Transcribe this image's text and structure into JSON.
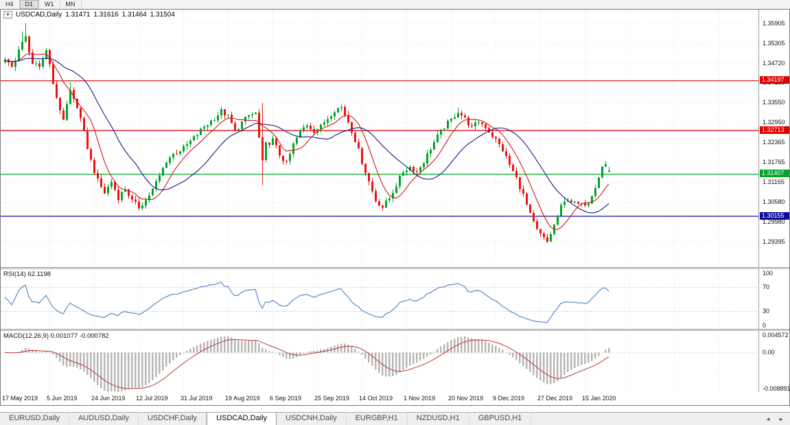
{
  "period_toolbar": {
    "buttons": [
      "H4",
      "D1",
      "W1",
      "MN"
    ],
    "active": "D1"
  },
  "quote_bar": {
    "dropdown_icon": "▼",
    "symbol": "USDCAD,Daily",
    "open": "1.31471",
    "high": "1.31616",
    "low": "1.31464",
    "close": "1.31504"
  },
  "rsi_panel": {
    "label": "RSI(14) 62.1198",
    "ticks": [
      {
        "v": 100,
        "t": "100"
      },
      {
        "v": 70,
        "t": "70"
      },
      {
        "v": 30,
        "t": "30"
      },
      {
        "v": 0,
        "t": "0"
      }
    ]
  },
  "macd_panel": {
    "label": "MACD(12,26,9) 0.001077 -0.000782",
    "ticks": [
      {
        "v": 0.004572,
        "t": "0.004572"
      },
      {
        "v": 0,
        "t": "0.00"
      },
      {
        "v": -0.008891,
        "t": "-0.008891"
      }
    ],
    "range": {
      "top": 0.0052,
      "bottom": -0.0095
    }
  },
  "bottom_tab_bar": {
    "scroll_left_icon": "◄",
    "scroll_right_icon": "►",
    "tabs": [
      {
        "label": "EURUSD,Daily",
        "active": false
      },
      {
        "label": "AUDUSD,Daily",
        "active": false
      },
      {
        "label": "USDCHF,Daily",
        "active": false
      },
      {
        "label": "USDCAD,Daily",
        "active": true
      },
      {
        "label": "USDCNH,Daily",
        "active": false
      },
      {
        "label": "EURGBP,H1",
        "active": false
      },
      {
        "label": "NZDUSD,H1",
        "active": false
      },
      {
        "label": "GBPUSD,H1",
        "active": false
      }
    ]
  },
  "chart_data": {
    "type": "candlestick",
    "symbol": "USDCAD",
    "timeframe": "Daily",
    "current_ohlc": {
      "open": 1.31471,
      "high": 1.31616,
      "low": 1.31464,
      "close": 1.31504
    },
    "x_labels": [
      "17 May 2019",
      "5 Jun 2019",
      "24 Jun 2019",
      "12 Jul 2019",
      "31 Jul 2019",
      "19 Aug 2019",
      "6 Sep 2019",
      "25 Sep 2019",
      "14 Oct 2019",
      "1 Nov 2019",
      "20 Nov 2019",
      "9 Dec 2019",
      "27 Dec 2019",
      "15 Jan 2020"
    ],
    "x_label_step": 13,
    "candle_count": 177,
    "price_axis_ticks": [
      "1.35905",
      "1.35305",
      "1.34720",
      "1.34135",
      "1.33550",
      "1.32950",
      "1.32365",
      "1.31765",
      "1.31165",
      "1.30580",
      "1.29980",
      "1.29395"
    ],
    "price_range": {
      "top": 1.3631,
      "bottom": 1.2863
    },
    "hlines": [
      {
        "price": 1.34197,
        "label": "1.34197",
        "color": "#dd0000"
      },
      {
        "price": 1.32713,
        "label": "1.32713",
        "color": "#dd0000"
      },
      {
        "price": 1.31407,
        "label": "1.31407",
        "color": "#00a426"
      },
      {
        "price": 1.30155,
        "label": "1.30155",
        "color": "#0d0da0"
      }
    ],
    "price_path": [
      [
        0,
        1.3478
      ],
      [
        2,
        1.3458
      ],
      [
        4,
        1.3512
      ],
      [
        6,
        1.3548
      ],
      [
        8,
        1.347
      ],
      [
        10,
        1.3455
      ],
      [
        12,
        1.3512
      ],
      [
        13,
        1.3468
      ],
      [
        15,
        1.3362
      ],
      [
        17,
        1.3305
      ],
      [
        19,
        1.339
      ],
      [
        21,
        1.334
      ],
      [
        23,
        1.3262
      ],
      [
        25,
        1.318
      ],
      [
        27,
        1.312
      ],
      [
        29,
        1.3085
      ],
      [
        31,
        1.3118
      ],
      [
        33,
        1.307
      ],
      [
        35,
        1.3098
      ],
      [
        37,
        1.306
      ],
      [
        39,
        1.3042
      ],
      [
        41,
        1.3062
      ],
      [
        43,
        1.3095
      ],
      [
        45,
        1.3135
      ],
      [
        47,
        1.318
      ],
      [
        49,
        1.32
      ],
      [
        52,
        1.3218
      ],
      [
        55,
        1.3248
      ],
      [
        58,
        1.3282
      ],
      [
        61,
        1.3308
      ],
      [
        63,
        1.3328
      ],
      [
        65,
        1.3312
      ],
      [
        67,
        1.3268
      ],
      [
        69,
        1.3295
      ],
      [
        71,
        1.3315
      ],
      [
        73,
        1.3322
      ],
      [
        75,
        1.3175
      ],
      [
        76,
        1.3228
      ],
      [
        78,
        1.3242
      ],
      [
        80,
        1.3198
      ],
      [
        82,
        1.3172
      ],
      [
        84,
        1.3228
      ],
      [
        86,
        1.3268
      ],
      [
        88,
        1.3288
      ],
      [
        90,
        1.327
      ],
      [
        92,
        1.3282
      ],
      [
        94,
        1.3308
      ],
      [
        96,
        1.3332
      ],
      [
        98,
        1.334
      ],
      [
        100,
        1.3298
      ],
      [
        102,
        1.3242
      ],
      [
        104,
        1.3178
      ],
      [
        106,
        1.3118
      ],
      [
        108,
        1.3062
      ],
      [
        110,
        1.3042
      ],
      [
        112,
        1.3068
      ],
      [
        114,
        1.3108
      ],
      [
        116,
        1.3148
      ],
      [
        118,
        1.3162
      ],
      [
        120,
        1.3148
      ],
      [
        122,
        1.3178
      ],
      [
        124,
        1.3218
      ],
      [
        126,
        1.3252
      ],
      [
        128,
        1.3282
      ],
      [
        130,
        1.3302
      ],
      [
        132,
        1.3328
      ],
      [
        134,
        1.3305
      ],
      [
        136,
        1.3278
      ],
      [
        138,
        1.3298
      ],
      [
        140,
        1.3282
      ],
      [
        143,
        1.3242
      ],
      [
        145,
        1.3212
      ],
      [
        147,
        1.3168
      ],
      [
        149,
        1.3128
      ],
      [
        151,
        1.3078
      ],
      [
        153,
        1.3018
      ],
      [
        155,
        1.2972
      ],
      [
        157,
        1.2948
      ],
      [
        158,
        1.2938
      ],
      [
        160,
        1.2988
      ],
      [
        162,
        1.3042
      ],
      [
        164,
        1.3068
      ],
      [
        166,
        1.3052
      ],
      [
        168,
        1.3048
      ],
      [
        170,
        1.3058
      ],
      [
        172,
        1.3105
      ],
      [
        174,
        1.3162
      ],
      [
        175,
        1.317
      ],
      [
        176,
        1.315
      ]
    ],
    "wick_overrides": [
      [
        5,
        1.3565,
        null
      ],
      [
        6,
        1.359,
        null
      ],
      [
        19,
        1.3415,
        null
      ],
      [
        39,
        null,
        1.3036
      ],
      [
        63,
        1.3342,
        null
      ],
      [
        75,
        1.3352,
        1.3108
      ],
      [
        98,
        1.3348,
        null
      ],
      [
        110,
        null,
        1.3036
      ],
      [
        132,
        1.3338,
        null
      ],
      [
        158,
        null,
        1.2934
      ],
      [
        175,
        1.3172,
        null
      ]
    ],
    "moving_averages": [
      {
        "type": "SMA",
        "period": 8,
        "color": "#cf1717"
      },
      {
        "type": "SMA",
        "period": 21,
        "color": "#15197f"
      }
    ],
    "rsi": {
      "period": 14,
      "current": 62.1198,
      "color": "#4a80bf",
      "levels": [
        70,
        30
      ]
    },
    "macd": {
      "fast": 12,
      "slow": 26,
      "signal": 9,
      "current": 0.001077,
      "signal_current": -0.000782,
      "hist_color": "#b6b6b6",
      "signal_color": "#c03333"
    },
    "up_color": "#00a42a",
    "down_color": "#ee1111"
  }
}
